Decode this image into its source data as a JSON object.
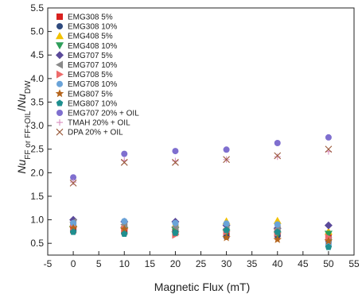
{
  "chart_data": {
    "type": "scatter",
    "xlabel": "Magnetic Flux (mT)",
    "ylabel_parts": {
      "nu1": "Nu",
      "sub1": "FF or FF+OIL",
      "slash": "/",
      "nu2": "Nu",
      "sub2": "DW"
    },
    "xlim": [
      -5,
      55
    ],
    "ylim": [
      0.25,
      5.5
    ],
    "xticks": [
      -5,
      0,
      5,
      10,
      15,
      20,
      25,
      30,
      35,
      40,
      45,
      50,
      55
    ],
    "yticks": [
      0.5,
      1.0,
      1.5,
      2.0,
      2.5,
      3.0,
      3.5,
      4.0,
      4.5,
      5.0,
      5.5
    ],
    "ytick_labels": [
      "0.5",
      "1.0",
      "1.5",
      "2.0",
      "2.5",
      "3.0",
      "3.5",
      "4.0",
      "4.5",
      "5.0",
      "5.5"
    ],
    "legend_position": "top-left",
    "grid": false,
    "series": [
      {
        "name": "EMG308 5%",
        "marker": "square",
        "color": "#d9211f",
        "x": [
          0,
          10,
          20,
          30,
          40,
          50
        ],
        "y": [
          0.78,
          0.75,
          0.74,
          0.72,
          0.7,
          0.62
        ]
      },
      {
        "name": "EMG308 10%",
        "marker": "circle",
        "color": "#2f4a7e",
        "x": [
          0,
          10,
          20,
          30,
          40,
          50
        ],
        "y": [
          0.76,
          0.72,
          0.76,
          0.64,
          0.66,
          0.55
        ]
      },
      {
        "name": "EMG408 5%",
        "marker": "triangle-up",
        "color": "#f2c200",
        "x": [
          0,
          10,
          20,
          30,
          40,
          50
        ],
        "y": [
          0.92,
          0.88,
          0.9,
          0.97,
          0.98,
          0.75
        ]
      },
      {
        "name": "EMG408 10%",
        "marker": "triangle-down",
        "color": "#2e9e5a",
        "x": [
          0,
          10,
          20,
          30,
          40,
          50
        ],
        "y": [
          0.8,
          0.78,
          0.78,
          0.72,
          0.68,
          0.7
        ]
      },
      {
        "name": "EMG707 5%",
        "marker": "diamond",
        "color": "#5b4a9a",
        "x": [
          0,
          10,
          20,
          30,
          40,
          50
        ],
        "y": [
          1.0,
          0.96,
          0.96,
          0.88,
          0.82,
          0.88
        ]
      },
      {
        "name": "EMG707 10%",
        "marker": "triangle-left",
        "color": "#8a8a8a",
        "x": [
          0,
          10,
          20,
          30,
          40,
          50
        ],
        "y": [
          0.95,
          0.9,
          0.85,
          0.8,
          0.8,
          0.58
        ]
      },
      {
        "name": "EMG708 5%",
        "marker": "triangle-right",
        "color": "#ee6b6b",
        "x": [
          0,
          10,
          20,
          30,
          40,
          50
        ],
        "y": [
          0.85,
          0.8,
          0.68,
          0.75,
          0.72,
          0.62
        ]
      },
      {
        "name": "EMG708 10%",
        "marker": "circle",
        "color": "#6aa3d8",
        "x": [
          0,
          10,
          20,
          30,
          40,
          50
        ],
        "y": [
          0.93,
          0.97,
          0.93,
          0.92,
          0.9,
          0.48
        ]
      },
      {
        "name": "EMG807 5%",
        "marker": "star",
        "color": "#b5651d",
        "x": [
          0,
          10,
          20,
          30,
          40,
          50
        ],
        "y": [
          0.82,
          0.8,
          0.72,
          0.62,
          0.58,
          0.55
        ]
      },
      {
        "name": "EMG807 10%",
        "marker": "pentagon",
        "color": "#1f8f8f",
        "x": [
          0,
          10,
          20,
          30,
          40,
          50
        ],
        "y": [
          0.74,
          0.7,
          0.72,
          0.78,
          0.74,
          0.42
        ]
      },
      {
        "name": "EMG707 20% + OIL",
        "marker": "circle",
        "color": "#7f6fcf",
        "x": [
          0,
          10,
          20,
          30,
          40,
          50
        ],
        "y": [
          1.9,
          2.4,
          2.46,
          2.49,
          2.63,
          2.75
        ]
      },
      {
        "name": "TMAH 20% + OIL",
        "marker": "plus",
        "color": "#d98fbf",
        "x": [
          0,
          10,
          20,
          30,
          40,
          50
        ],
        "y": [
          1.8,
          2.26,
          2.25,
          2.28,
          2.34,
          2.45
        ]
      },
      {
        "name": "DPA 20% + OIL",
        "marker": "cross",
        "color": "#9a5a3a",
        "x": [
          0,
          10,
          20,
          30,
          40,
          50
        ],
        "y": [
          1.78,
          2.22,
          2.22,
          2.28,
          2.36,
          2.5
        ]
      }
    ]
  }
}
